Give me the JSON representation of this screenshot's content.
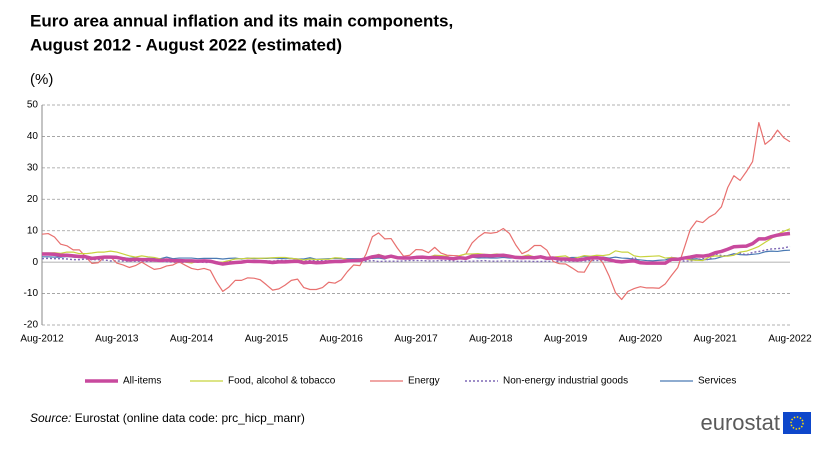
{
  "chart_data": {
    "type": "line",
    "title": [
      "Euro area annual inflation and its main components,",
      "August 2012 - August 2022 (estimated)"
    ],
    "y_label": "(%)",
    "categories": [
      "Aug-2012",
      null,
      null,
      null,
      null,
      null,
      null,
      null,
      null,
      null,
      null,
      null,
      "Aug-2013",
      null,
      null,
      null,
      null,
      null,
      null,
      null,
      null,
      null,
      null,
      null,
      "Aug-2014",
      null,
      null,
      null,
      null,
      null,
      null,
      null,
      null,
      null,
      null,
      null,
      "Aug-2015",
      null,
      null,
      null,
      null,
      null,
      null,
      null,
      null,
      null,
      null,
      null,
      "Aug-2016",
      null,
      null,
      null,
      null,
      null,
      null,
      null,
      null,
      null,
      null,
      null,
      "Aug-2017",
      null,
      null,
      null,
      null,
      null,
      null,
      null,
      null,
      null,
      null,
      null,
      "Aug-2018",
      null,
      null,
      null,
      null,
      null,
      null,
      null,
      null,
      null,
      null,
      null,
      "Aug-2019",
      null,
      null,
      null,
      null,
      null,
      null,
      null,
      null,
      null,
      null,
      null,
      "Aug-2020",
      null,
      null,
      null,
      null,
      null,
      null,
      null,
      null,
      null,
      null,
      null,
      "Aug-2021",
      null,
      null,
      null,
      null,
      null,
      null,
      null,
      null,
      null,
      null,
      null,
      "Aug-2022"
    ],
    "ylim": [
      -20,
      50
    ],
    "yticks": [
      -20,
      -10,
      0,
      10,
      20,
      30,
      40,
      50
    ],
    "grid": true,
    "series": [
      {
        "name": "All-items",
        "color": "#c8499d",
        "width": 3.5,
        "dash": false,
        "values": [
          2.6,
          2.6,
          2.5,
          2.2,
          2.2,
          2.0,
          1.8,
          1.7,
          1.2,
          1.4,
          1.6,
          1.6,
          1.5,
          1.1,
          0.7,
          0.9,
          0.8,
          0.8,
          0.7,
          0.5,
          0.7,
          0.5,
          0.5,
          0.4,
          0.4,
          0.3,
          0.4,
          0.3,
          -0.2,
          -0.6,
          -0.3,
          -0.1,
          0.0,
          0.3,
          0.2,
          0.2,
          0.1,
          -0.1,
          0.1,
          0.1,
          0.2,
          0.3,
          -0.2,
          0.0,
          -0.2,
          -0.1,
          0.1,
          0.2,
          0.2,
          0.4,
          0.5,
          0.6,
          1.1,
          1.7,
          2.0,
          1.5,
          1.9,
          1.4,
          1.3,
          1.3,
          1.5,
          1.6,
          1.4,
          1.5,
          1.4,
          1.3,
          1.1,
          1.4,
          1.2,
          1.9,
          2.0,
          2.1,
          2.0,
          2.1,
          2.2,
          1.9,
          1.5,
          1.4,
          1.5,
          1.4,
          1.7,
          1.2,
          1.3,
          1.0,
          1.0,
          0.8,
          0.7,
          1.0,
          1.3,
          1.4,
          1.2,
          0.7,
          0.3,
          0.1,
          0.3,
          0.4,
          -0.2,
          -0.3,
          -0.3,
          -0.3,
          -0.3,
          0.9,
          0.9,
          1.3,
          1.6,
          2.0,
          1.9,
          2.2,
          3.0,
          3.4,
          4.1,
          4.9,
          5.0,
          5.1,
          5.9,
          7.4,
          7.4,
          8.1,
          8.6,
          8.9,
          9.1
        ]
      },
      {
        "name": "Food, alcohol & tobacco",
        "color": "#c8d33e",
        "width": 1.2,
        "dash": false,
        "values": [
          2.9,
          2.9,
          3.0,
          2.8,
          3.2,
          3.2,
          2.7,
          2.7,
          2.9,
          3.2,
          3.2,
          3.5,
          3.2,
          2.6,
          2.0,
          1.6,
          2.0,
          1.7,
          1.5,
          1.0,
          0.7,
          0.1,
          0.2,
          0.0,
          -0.3,
          0.3,
          0.5,
          0.5,
          0.0,
          0.0,
          0.5,
          1.0,
          1.1,
          1.2,
          1.3,
          1.2,
          1.3,
          1.4,
          1.5,
          1.5,
          1.2,
          1.0,
          0.7,
          1.0,
          0.8,
          0.9,
          0.9,
          1.4,
          1.3,
          0.8,
          0.7,
          0.7,
          1.2,
          1.7,
          2.5,
          1.8,
          1.5,
          1.5,
          1.4,
          1.4,
          1.4,
          1.4,
          1.5,
          2.2,
          2.1,
          1.9,
          1.0,
          2.1,
          2.6,
          2.6,
          2.7,
          2.5,
          2.4,
          2.6,
          2.2,
          1.9,
          1.8,
          1.8,
          2.3,
          1.6,
          1.5,
          1.6,
          1.6,
          1.8,
          2.0,
          1.0,
          1.5,
          2.1,
          1.9,
          2.2,
          2.1,
          2.4,
          3.6,
          3.2,
          3.2,
          2.0,
          1.7,
          1.8,
          1.9,
          2.0,
          1.3,
          1.5,
          1.3,
          1.1,
          0.7,
          0.6,
          0.5,
          1.6,
          2.0,
          1.9,
          1.9,
          2.2,
          3.2,
          3.5,
          4.2,
          5.0,
          6.3,
          7.5,
          8.9,
          9.8,
          10.6
        ]
      },
      {
        "name": "Energy",
        "color": "#e8706f",
        "width": 1.2,
        "dash": false,
        "values": [
          8.9,
          9.1,
          8.0,
          5.7,
          5.2,
          3.9,
          3.9,
          1.7,
          -0.4,
          -0.2,
          1.6,
          1.6,
          -0.3,
          -0.9,
          -1.7,
          -1.1,
          0.0,
          -1.2,
          -2.3,
          -2.0,
          -1.2,
          -0.9,
          0.1,
          -1.0,
          -2.0,
          -2.4,
          -2.0,
          -2.6,
          -6.3,
          -9.3,
          -7.9,
          -5.8,
          -5.8,
          -5.0,
          -5.1,
          -5.6,
          -7.2,
          -8.9,
          -8.5,
          -7.3,
          -5.8,
          -5.4,
          -8.1,
          -8.7,
          -8.7,
          -8.1,
          -6.4,
          -6.7,
          -5.6,
          -3.0,
          -0.9,
          -1.1,
          2.6,
          8.1,
          9.3,
          7.4,
          7.5,
          4.5,
          1.9,
          2.2,
          4.0,
          3.9,
          3.0,
          4.7,
          2.9,
          2.2,
          2.1,
          2.0,
          2.6,
          6.1,
          8.0,
          9.4,
          9.2,
          9.5,
          10.7,
          9.1,
          5.5,
          2.7,
          3.6,
          5.3,
          5.3,
          3.8,
          0.2,
          -0.5,
          -0.6,
          -1.8,
          -3.1,
          -3.2,
          0.2,
          1.9,
          -0.3,
          -4.5,
          -9.7,
          -11.9,
          -9.3,
          -8.4,
          -7.8,
          -8.2,
          -8.2,
          -8.3,
          -6.9,
          -4.2,
          -1.7,
          4.3,
          10.4,
          13.1,
          12.6,
          14.3,
          15.4,
          17.6,
          23.7,
          27.5,
          26.0,
          28.8,
          32.0,
          44.4,
          37.5,
          39.1,
          42.0,
          39.6,
          38.3
        ]
      },
      {
        "name": "Non-energy industrial goods",
        "color": "#7f68b6",
        "width": 1.4,
        "dash": true,
        "values": [
          1.1,
          1.2,
          1.1,
          1.1,
          1.0,
          0.8,
          0.8,
          1.0,
          0.8,
          0.8,
          0.7,
          0.4,
          0.4,
          0.4,
          0.3,
          0.3,
          0.3,
          0.2,
          0.4,
          0.2,
          0.1,
          0.0,
          -0.1,
          0.0,
          0.3,
          0.2,
          -0.1,
          -0.1,
          -0.1,
          -0.1,
          0.5,
          -0.1,
          0.3,
          0.2,
          0.3,
          0.4,
          0.4,
          0.3,
          0.6,
          0.5,
          0.5,
          0.7,
          0.7,
          0.5,
          0.5,
          0.5,
          0.4,
          0.4,
          0.3,
          0.3,
          0.3,
          0.3,
          0.3,
          0.5,
          0.2,
          0.3,
          0.3,
          0.3,
          0.4,
          0.5,
          0.5,
          0.5,
          0.4,
          0.4,
          0.5,
          0.5,
          0.4,
          0.2,
          0.3,
          0.3,
          0.4,
          0.5,
          0.3,
          0.3,
          0.4,
          0.4,
          0.3,
          0.3,
          0.3,
          0.2,
          0.2,
          0.3,
          0.2,
          0.3,
          0.4,
          0.3,
          0.3,
          0.4,
          0.5,
          0.5,
          0.5,
          0.5,
          0.3,
          0.2,
          0.2,
          1.6,
          -0.1,
          -0.1,
          -0.1,
          -0.1,
          -0.1,
          1.5,
          1.0,
          0.3,
          0.4,
          0.7,
          1.2,
          0.7,
          2.6,
          2.1,
          2.0,
          2.4,
          2.9,
          2.3,
          3.1,
          3.4,
          3.8,
          4.2,
          4.3,
          4.5,
          5.0
        ]
      },
      {
        "name": "Services",
        "color": "#4a7ab3",
        "width": 1.2,
        "dash": false,
        "values": [
          1.7,
          1.7,
          1.6,
          1.6,
          1.8,
          1.6,
          1.5,
          1.8,
          1.1,
          1.5,
          1.4,
          1.4,
          1.4,
          1.4,
          1.2,
          1.4,
          1.0,
          1.2,
          1.2,
          1.1,
          1.6,
          1.1,
          1.3,
          1.3,
          1.3,
          1.1,
          1.2,
          1.2,
          1.2,
          1.0,
          1.2,
          1.3,
          1.0,
          1.3,
          1.1,
          1.2,
          1.2,
          1.3,
          1.2,
          1.1,
          1.2,
          1.0,
          1.0,
          1.4,
          0.9,
          1.0,
          1.1,
          1.2,
          1.1,
          1.1,
          1.1,
          1.1,
          1.3,
          1.2,
          1.3,
          1.0,
          1.8,
          1.3,
          1.6,
          1.6,
          1.6,
          1.5,
          1.2,
          1.5,
          1.2,
          1.3,
          1.3,
          1.5,
          1.0,
          1.6,
          1.3,
          1.4,
          1.3,
          1.3,
          1.5,
          1.3,
          1.3,
          1.6,
          1.4,
          1.4,
          1.9,
          1.0,
          1.6,
          1.2,
          1.3,
          1.5,
          1.5,
          1.9,
          1.8,
          1.5,
          1.6,
          1.3,
          1.6,
          1.3,
          1.2,
          0.9,
          0.7,
          0.5,
          0.4,
          0.6,
          0.7,
          1.4,
          1.3,
          1.3,
          0.9,
          1.1,
          0.7,
          0.9,
          1.1,
          1.7,
          2.1,
          2.7,
          2.4,
          2.3,
          2.5,
          2.7,
          3.3,
          3.5,
          3.4,
          3.7,
          3.8
        ]
      }
    ],
    "source_label": "Source:",
    "source": "Eurostat (online data code: prc_hicp_manr)",
    "logo": "eurostat"
  }
}
